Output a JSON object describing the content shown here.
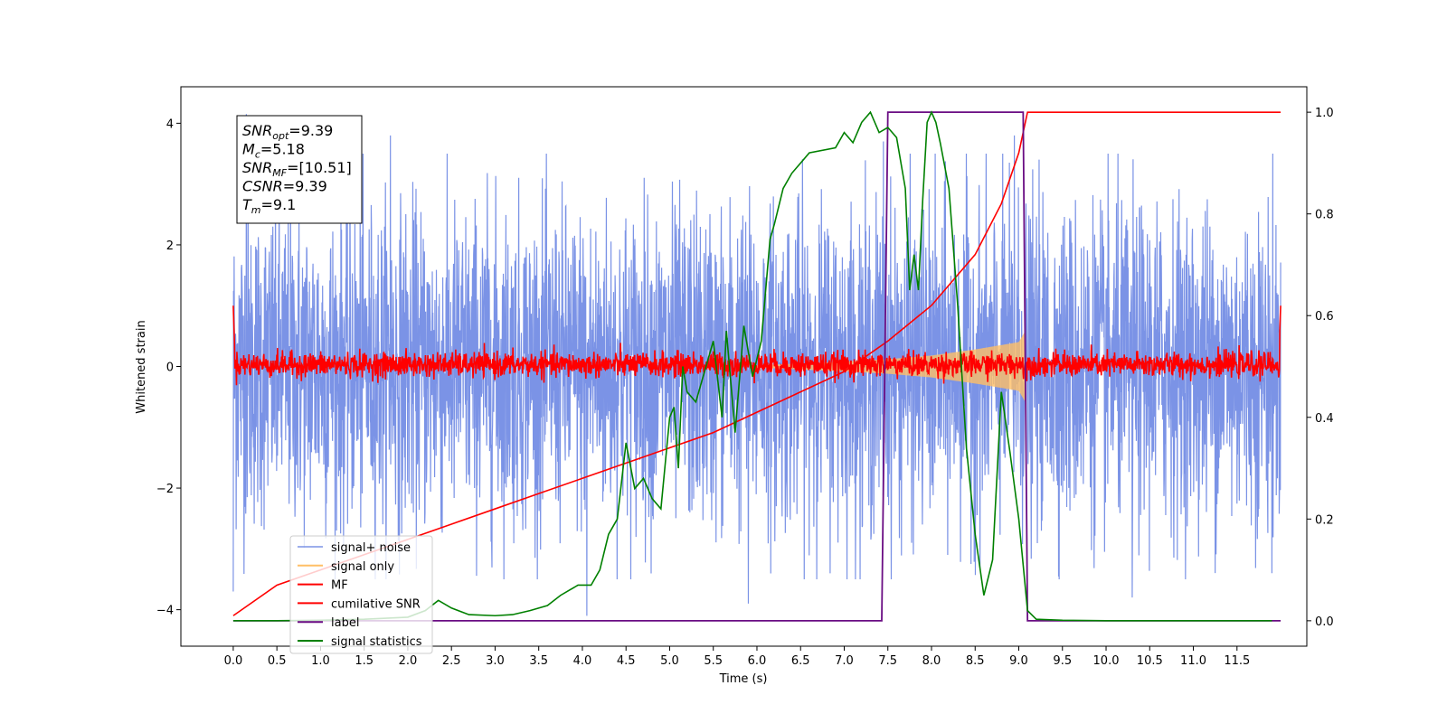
{
  "chart_data": {
    "type": "line",
    "xlabel": "Time (s)",
    "ylabel_left": "Whitened strain",
    "ylabel_right": "",
    "xlim": [
      -0.6,
      12.3
    ],
    "ylim_left": [
      -4.6,
      4.6
    ],
    "ylim_right": [
      -0.05,
      1.05
    ],
    "x_ticks": [
      "0.0",
      "0.5",
      "1.0",
      "1.5",
      "2.0",
      "2.5",
      "3.0",
      "3.5",
      "4.0",
      "4.5",
      "5.0",
      "5.5",
      "6.0",
      "6.5",
      "7.0",
      "7.5",
      "8.0",
      "8.5",
      "9.0",
      "9.5",
      "10.0",
      "10.5",
      "11.0",
      "11.5"
    ],
    "y_ticks_left": [
      "4",
      "2",
      "0",
      "−2",
      "−4"
    ],
    "y_ticks_right": [
      "1.0",
      "0.8",
      "0.6",
      "0.4",
      "0.2",
      "0.0"
    ],
    "grid": false,
    "legend": {
      "placement": "lower-left",
      "entries": [
        {
          "label": "signal+ noise",
          "color": "#7b93e6"
        },
        {
          "label": "signal only",
          "color": "#ffbf66"
        },
        {
          "label": "MF",
          "color": "#ff0000"
        },
        {
          "label": "cumilative SNR",
          "color": "#ff0000"
        },
        {
          "label": "label",
          "color": "#6a0d83"
        },
        {
          "label": "signal statistics",
          "color": "#008000"
        }
      ]
    },
    "annotation_box": {
      "placement": "upper-left",
      "lines": [
        {
          "base": "SNR",
          "sub": "opt",
          "rest": "=9.39"
        },
        {
          "base": "M",
          "sub": "c",
          "rest": "=5.18"
        },
        {
          "base": "SNR",
          "sub": "MF",
          "rest": "=[10.51]"
        },
        {
          "base": "CSNR",
          "sub": "",
          "rest": "=9.39"
        },
        {
          "base": "T",
          "sub": "m",
          "rest": "=9.1"
        }
      ]
    },
    "series": [
      {
        "name": "signal+ noise",
        "axis": "left",
        "color": "#7b93e6",
        "x_range": [
          0.0,
          12.0
        ],
        "noise_amplitude": 1.3,
        "extreme_peaks": [
          {
            "x": 0.0,
            "y": -3.7
          },
          {
            "x": 0.15,
            "y": 4.15
          },
          {
            "x": 1.8,
            "y": 3.8
          },
          {
            "x": 4.05,
            "y": -4.1
          },
          {
            "x": 5.9,
            "y": -3.9
          },
          {
            "x": 7.45,
            "y": 3.7
          },
          {
            "x": 8.95,
            "y": 3.8
          },
          {
            "x": 10.3,
            "y": -3.8
          },
          {
            "x": 11.9,
            "y": -3.4
          }
        ]
      },
      {
        "name": "signal only",
        "axis": "left",
        "color": "#ffbf66",
        "x": [
          6.0,
          7.0,
          7.5,
          8.0,
          8.5,
          9.0,
          9.08
        ],
        "envelope": [
          0.02,
          0.08,
          0.12,
          0.18,
          0.28,
          0.4,
          0.6
        ]
      },
      {
        "name": "MF",
        "axis": "left",
        "color": "#ff0000",
        "x_range": [
          0.0,
          12.0
        ],
        "baseline": 0.03,
        "noise_amplitude": 0.1,
        "end_spikes": [
          {
            "x": 0.0,
            "y": 1.0
          },
          {
            "x": 12.0,
            "y": 1.0
          }
        ]
      },
      {
        "name": "cumilative SNR",
        "axis": "right",
        "color": "#ff0000",
        "x": [
          0.0,
          0.5,
          1.0,
          1.5,
          2.0,
          2.5,
          3.0,
          3.5,
          4.0,
          4.5,
          5.0,
          5.5,
          6.0,
          6.5,
          7.0,
          7.5,
          8.0,
          8.5,
          8.8,
          9.0,
          9.1,
          12.0
        ],
        "values": [
          0.01,
          0.07,
          0.1,
          0.13,
          0.16,
          0.19,
          0.22,
          0.25,
          0.28,
          0.31,
          0.34,
          0.37,
          0.41,
          0.45,
          0.49,
          0.55,
          0.62,
          0.72,
          0.82,
          0.92,
          1.0,
          1.0
        ]
      },
      {
        "name": "label",
        "axis": "right",
        "color": "#6a0d83",
        "x": [
          0.0,
          7.43,
          7.5,
          9.05,
          9.1,
          12.0
        ],
        "values": [
          0.0,
          0.0,
          1.0,
          1.0,
          0.0,
          0.0
        ]
      },
      {
        "name": "signal statistics",
        "axis": "right",
        "color": "#008000",
        "x": [
          0.0,
          0.5,
          1.0,
          1.5,
          2.0,
          2.2,
          2.35,
          2.5,
          2.7,
          3.0,
          3.2,
          3.4,
          3.6,
          3.75,
          3.85,
          3.95,
          4.1,
          4.2,
          4.3,
          4.4,
          4.5,
          4.6,
          4.7,
          4.8,
          4.9,
          5.0,
          5.05,
          5.1,
          5.15,
          5.2,
          5.3,
          5.5,
          5.6,
          5.65,
          5.75,
          5.85,
          5.95,
          6.05,
          6.15,
          6.2,
          6.3,
          6.4,
          6.6,
          6.9,
          7.0,
          7.1,
          7.2,
          7.3,
          7.4,
          7.5,
          7.6,
          7.7,
          7.75,
          7.8,
          7.85,
          7.9,
          7.95,
          8.0,
          8.05,
          8.1,
          8.2,
          8.3,
          8.4,
          8.5,
          8.6,
          8.7,
          8.8,
          8.9,
          9.0,
          9.1,
          9.2,
          9.5,
          10.0,
          11.0,
          11.9
        ],
        "values": [
          0.0,
          0.0,
          0.001,
          0.003,
          0.007,
          0.02,
          0.04,
          0.025,
          0.012,
          0.01,
          0.012,
          0.02,
          0.03,
          0.05,
          0.06,
          0.07,
          0.07,
          0.1,
          0.17,
          0.2,
          0.35,
          0.26,
          0.28,
          0.24,
          0.22,
          0.4,
          0.42,
          0.3,
          0.5,
          0.45,
          0.43,
          0.55,
          0.4,
          0.57,
          0.37,
          0.58,
          0.48,
          0.55,
          0.75,
          0.78,
          0.85,
          0.88,
          0.92,
          0.93,
          0.96,
          0.94,
          0.98,
          1.0,
          0.96,
          0.97,
          0.95,
          0.85,
          0.65,
          0.72,
          0.65,
          0.83,
          0.98,
          1.0,
          0.98,
          0.94,
          0.85,
          0.62,
          0.34,
          0.17,
          0.05,
          0.12,
          0.45,
          0.33,
          0.2,
          0.02,
          0.003,
          0.001,
          0.0,
          0.0,
          0.0
        ]
      }
    ]
  }
}
